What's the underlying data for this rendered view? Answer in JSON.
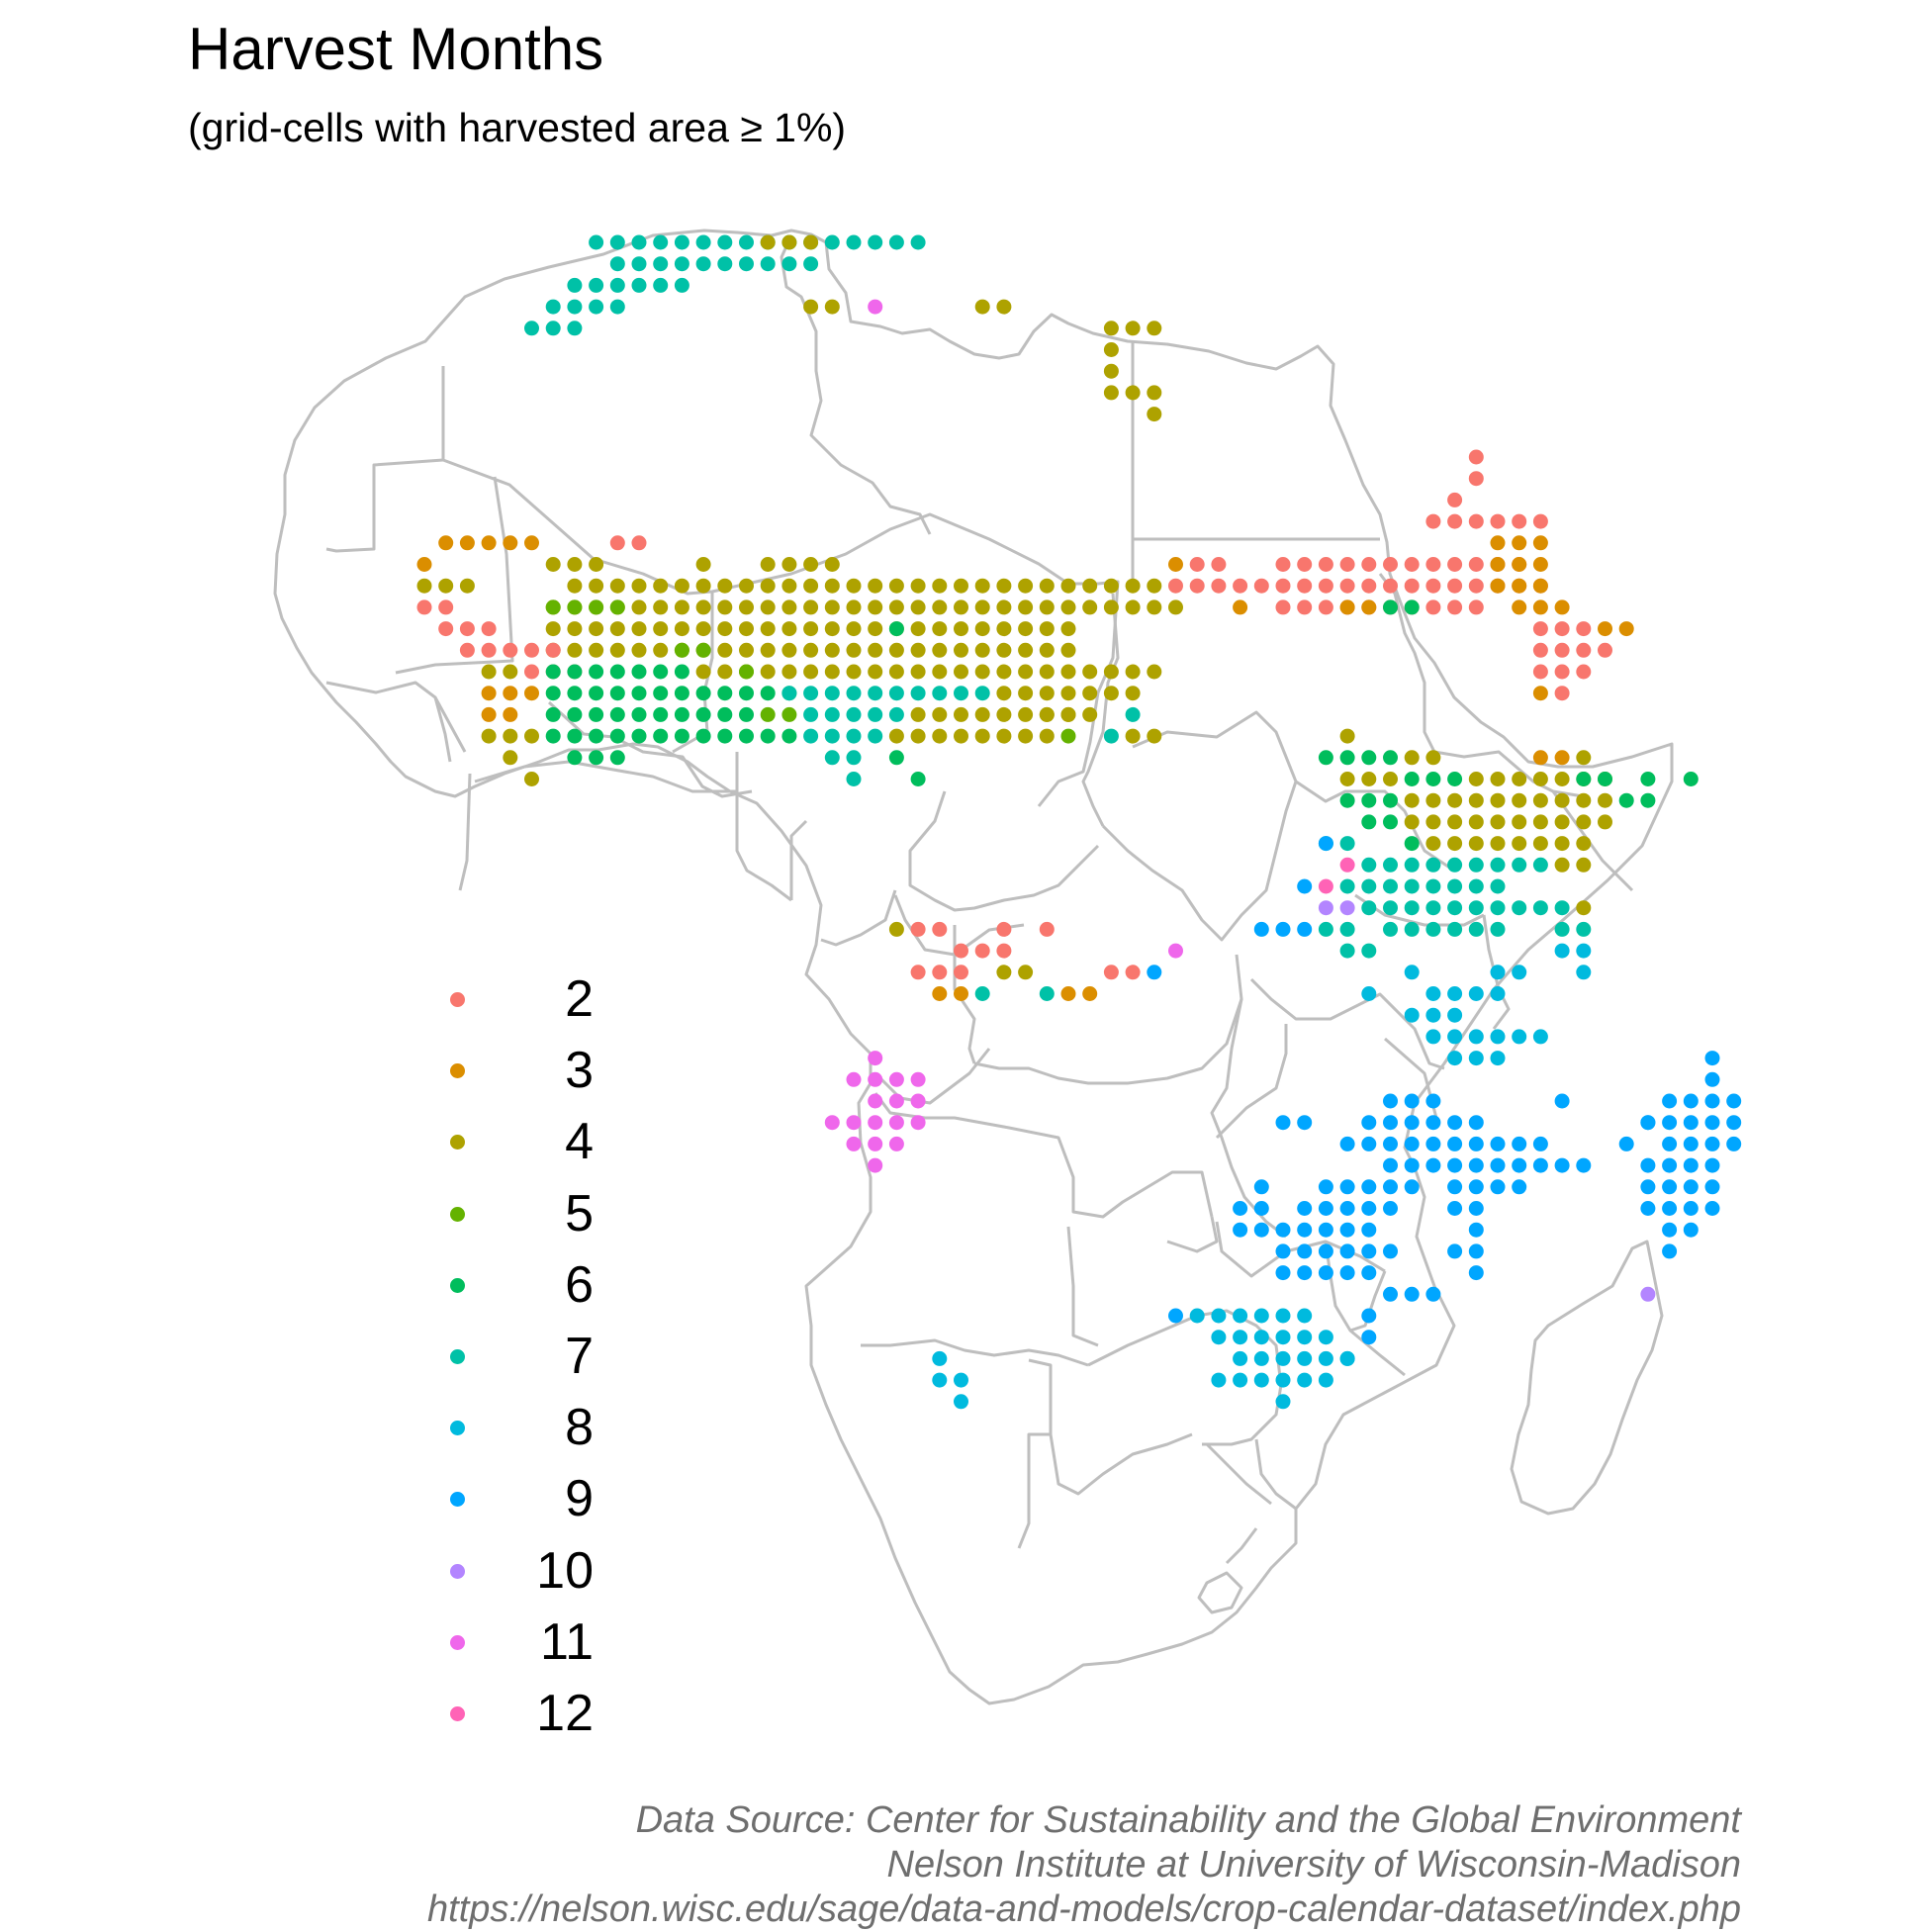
{
  "title": "Harvest Months",
  "subtitle": "(grid-cells with harvested area ≥ 1%)",
  "legend": {
    "entries": [
      {
        "label": "2",
        "color": "#F8766D"
      },
      {
        "label": "3",
        "color": "#DB8E00"
      },
      {
        "label": "4",
        "color": "#AEA200"
      },
      {
        "label": "5",
        "color": "#64B200"
      },
      {
        "label": "6",
        "color": "#00BD5C"
      },
      {
        "label": "7",
        "color": "#00C1A7"
      },
      {
        "label": "8",
        "color": "#00BADE"
      },
      {
        "label": "9",
        "color": "#00A6FF"
      },
      {
        "label": "10",
        "color": "#B385FF"
      },
      {
        "label": "11",
        "color": "#EF67EB"
      },
      {
        "label": "12",
        "color": "#FF63B6"
      }
    ]
  },
  "caption": {
    "line1": "Data Source: Center for Sustainability and the Global Environment",
    "line2": "Nelson Institute at University of Wisconsin-Madison",
    "line3": "https://nelson.wisc.edu/sage/data-and-models/crop-calendar-dataset/index.php"
  },
  "map": {
    "region": "Africa",
    "country_border_color": "#BEBEBE",
    "harvest_clusters": [
      {
        "region": "Northwest coast (Morocco-Algeria-Tunisia)",
        "month": 7
      },
      {
        "region": "Tunisia",
        "month": 4
      },
      {
        "region": "Libya coast",
        "month": 4
      },
      {
        "region": "Libya coast",
        "month": 11
      },
      {
        "region": "Nile valley (Egypt)",
        "month": 4
      },
      {
        "region": "West Africa Sahel belt",
        "month": 4
      },
      {
        "region": "Senegal-Guinea coast",
        "month": 3
      },
      {
        "region": "Guinea-Sierra Leone",
        "month": 2
      },
      {
        "region": "West Africa Guinean coast",
        "month": 6
      },
      {
        "region": "West Africa Guinean coast",
        "month": 5
      },
      {
        "region": "Nigeria-Cameroon",
        "month": 7
      },
      {
        "region": "Sudan",
        "month": 2
      },
      {
        "region": "Ethiopia",
        "month": 3
      },
      {
        "region": "Ethiopia highlands",
        "month": 2
      },
      {
        "region": "Eritrea",
        "month": 2
      },
      {
        "region": "Uganda",
        "month": 6
      },
      {
        "region": "Kenya",
        "month": 4
      },
      {
        "region": "Rwanda-Burundi-Tanzania",
        "month": 7
      },
      {
        "region": "Great Lakes",
        "month": 11
      },
      {
        "region": "Great Lakes",
        "month": 10
      },
      {
        "region": "DR Congo south",
        "month": 2
      },
      {
        "region": "DR Congo south",
        "month": 3
      },
      {
        "region": "Angola highlands",
        "month": 11
      },
      {
        "region": "Tanzania-Malawi-Zambia",
        "month": 8
      },
      {
        "region": "Zambia-Malawi-Mozambique-Zimbabwe",
        "month": 9
      },
      {
        "region": "South Africa",
        "month": 8
      },
      {
        "region": "Western Cape",
        "month": 8
      },
      {
        "region": "Madagascar",
        "month": 9
      },
      {
        "region": "Madagascar south",
        "month": 10
      }
    ]
  }
}
